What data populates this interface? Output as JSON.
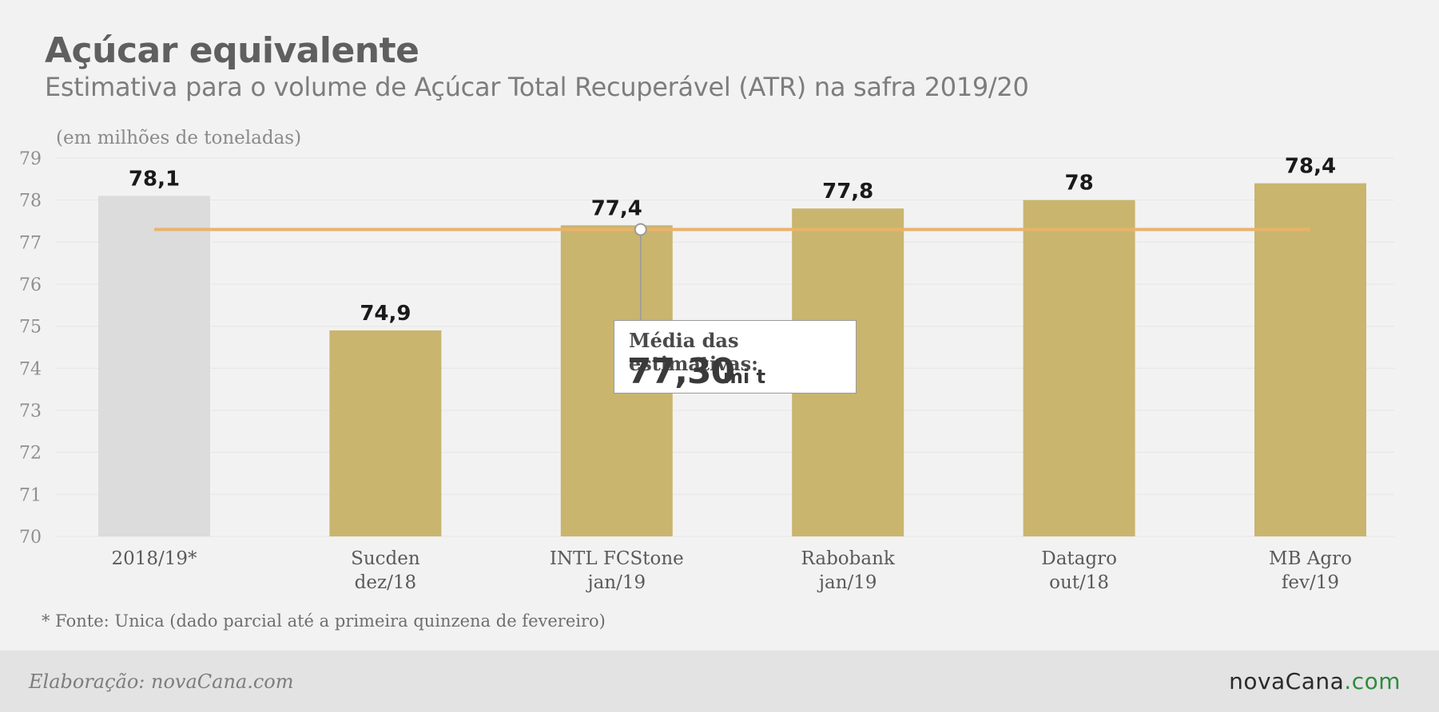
{
  "header": {
    "title": "Açúcar equivalente",
    "subtitle": "Estimativa para o volume de Açúcar Total Recuperável (ATR) na safra 2019/20",
    "unit_note": "(em milhões de toneladas)"
  },
  "chart_data": {
    "type": "bar",
    "categories": [
      [
        "2018/19*"
      ],
      [
        "Sucden",
        "dez/18"
      ],
      [
        "INTL FCStone",
        "jan/19"
      ],
      [
        "Rabobank",
        "jan/19"
      ],
      [
        "Datagro",
        "out/18"
      ],
      [
        "MB Agro",
        "fev/19"
      ]
    ],
    "values": [
      78.1,
      74.9,
      77.4,
      77.8,
      78,
      78.4
    ],
    "value_labels": [
      "78,1",
      "74,9",
      "77,4",
      "77,8",
      "78",
      "78,4"
    ],
    "ylim": [
      70,
      79
    ],
    "yticks": [
      70,
      71,
      72,
      73,
      74,
      75,
      76,
      77,
      78,
      79
    ],
    "bar_colors": [
      "#dcdcdc",
      "#c9b56e",
      "#c9b56e",
      "#c9b56e",
      "#c9b56e",
      "#c9b56e"
    ],
    "average": {
      "value": 77.3,
      "label": "Média das estimativas:",
      "value_text": "77,30",
      "unit": "mi t",
      "color": "#eab36a"
    },
    "grid": true
  },
  "footnote": "* Fonte: Unica (dado parcial até a primeira quinzena de fevereiro)",
  "footer": {
    "credit": "Elaboração: novaCana.com",
    "logo_main": "novaCana",
    "logo_suffix": ".com"
  },
  "colors": {
    "background": "#f2f2f2",
    "footer_bg": "#e3e3e3",
    "accent_green": "#2e8b3e"
  }
}
